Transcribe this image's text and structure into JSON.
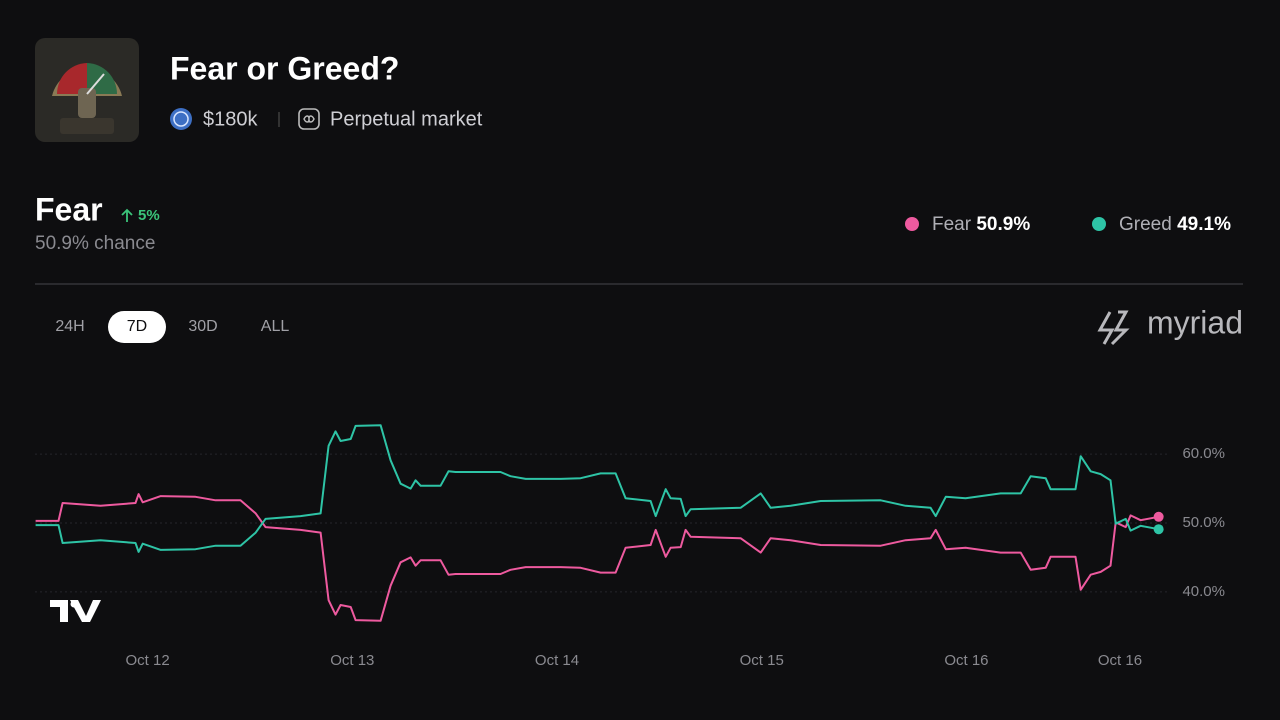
{
  "header": {
    "title": "Fear or Greed?",
    "volume": "$180k",
    "market": "Perpetual market"
  },
  "summary": {
    "outcome": "Fear",
    "change": "5%",
    "chance": "50.9% chance"
  },
  "tabs": {
    "options": [
      "24H",
      "7D",
      "30D",
      "ALL"
    ],
    "active": "7D"
  },
  "brand": "myriad",
  "chart_data": {
    "type": "line",
    "x": [
      11.453,
      11.565,
      11.585,
      11.77,
      11.941,
      11.956,
      11.976,
      12.064,
      12.234,
      12.332,
      12.454,
      12.528,
      12.576,
      12.747,
      12.845,
      12.884,
      12.918,
      12.943,
      12.992,
      13.016,
      13.138,
      13.187,
      13.236,
      13.285,
      13.309,
      13.334,
      13.431,
      13.47,
      13.504,
      13.724,
      13.773,
      13.847,
      14.018,
      14.115,
      14.213,
      14.286,
      14.335,
      14.457,
      14.482,
      14.531,
      14.555,
      14.604,
      14.628,
      14.653,
      14.897,
      14.995,
      15.044,
      15.141,
      15.288,
      15.581,
      15.703,
      15.825,
      15.85,
      15.899,
      15.996,
      16.167,
      16.265,
      16.314,
      16.387,
      16.411,
      16.533,
      16.558,
      16.607,
      16.656,
      16.704,
      16.729,
      16.778,
      16.802,
      16.851,
      16.939
    ],
    "series": [
      {
        "name": "Fear",
        "color": "#ee5a9f",
        "value_label": "50.9%",
        "values": [
          50.3,
          50.3,
          52.9,
          52.5,
          52.9,
          54.2,
          53.0,
          53.9,
          53.8,
          53.3,
          53.3,
          51.4,
          49.4,
          49.0,
          48.6,
          38.8,
          36.7,
          38.1,
          37.8,
          35.9,
          35.8,
          40.9,
          44.3,
          45.0,
          43.8,
          44.6,
          44.6,
          42.5,
          42.6,
          42.6,
          43.2,
          43.6,
          43.6,
          43.5,
          42.8,
          42.8,
          46.4,
          46.8,
          49.0,
          45.1,
          46.4,
          46.5,
          49.0,
          48.0,
          47.8,
          45.7,
          47.8,
          47.5,
          46.8,
          46.7,
          47.5,
          47.8,
          49.0,
          46.2,
          46.4,
          45.7,
          45.7,
          43.2,
          43.5,
          45.1,
          45.1,
          40.3,
          42.5,
          42.9,
          43.8,
          50.1,
          49.4,
          51.1,
          50.4,
          50.9
        ]
      },
      {
        "name": "Greed",
        "color": "#2ec4a6",
        "value_label": "49.1%",
        "values": [
          49.7,
          49.7,
          47.1,
          47.5,
          47.1,
          45.8,
          47.0,
          46.1,
          46.2,
          46.7,
          46.7,
          48.6,
          50.6,
          51.0,
          51.4,
          61.2,
          63.3,
          61.9,
          62.2,
          64.1,
          64.2,
          59.1,
          55.7,
          55.0,
          56.2,
          55.4,
          55.4,
          57.5,
          57.4,
          57.4,
          56.8,
          56.4,
          56.4,
          56.5,
          57.2,
          57.2,
          53.6,
          53.2,
          51.0,
          54.9,
          53.6,
          53.5,
          51.0,
          52.0,
          52.2,
          54.3,
          52.2,
          52.5,
          53.2,
          53.3,
          52.5,
          52.2,
          51.0,
          53.8,
          53.6,
          54.3,
          54.3,
          56.8,
          56.5,
          54.9,
          54.9,
          59.7,
          57.5,
          57.1,
          56.2,
          49.9,
          50.6,
          48.9,
          49.6,
          49.1
        ]
      }
    ],
    "xlim": [
      11.45,
      16.97
    ],
    "xticks": [
      {
        "value": 12,
        "label": "Oct 12"
      },
      {
        "value": 13,
        "label": "Oct 13"
      },
      {
        "value": 14,
        "label": "Oct 14"
      },
      {
        "value": 15,
        "label": "Oct 15"
      },
      {
        "value": 16,
        "label": "Oct 16"
      },
      {
        "value": 16.75,
        "label": "Oct 16"
      }
    ],
    "ylim": [
      32,
      68
    ],
    "yticks": [
      {
        "value": 40,
        "label": "40.0%"
      },
      {
        "value": 50,
        "label": "50.0%"
      },
      {
        "value": 60,
        "label": "60.0%"
      }
    ],
    "grid": true
  }
}
